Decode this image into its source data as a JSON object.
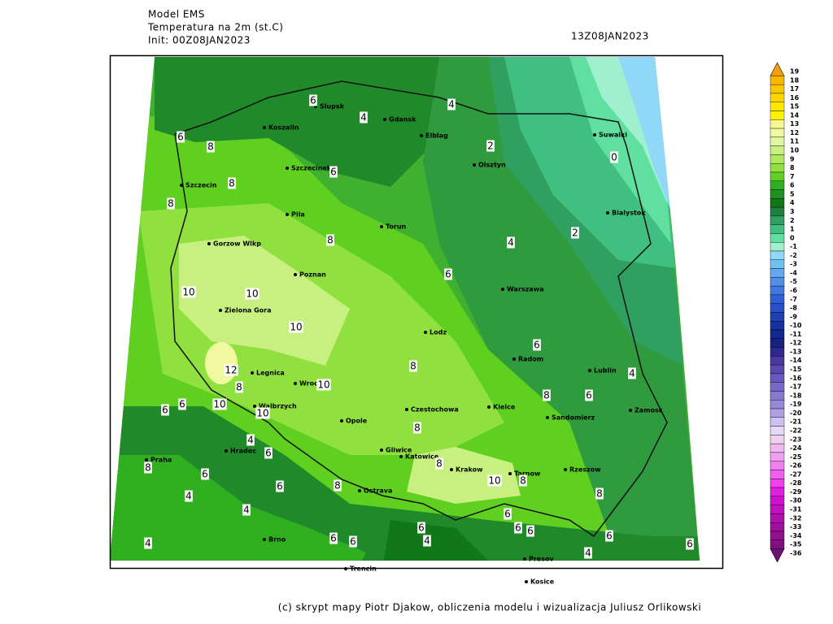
{
  "header": {
    "model": "Model EMS",
    "variable": "Temperatura na 2m (st.C)",
    "init": "Init: 00Z08JAN2023",
    "valid": "13Z08JAN2023"
  },
  "footer": "(c) skrypt mapy Piotr Djakow, obliczenia modelu i wizualizacja Juliusz Orlikowski",
  "cities": [
    "Slupsk",
    "Koszalin",
    "Gdansk",
    "Elblag",
    "Suwalki",
    "Olsztyn",
    "Szczecin",
    "Szczecinek",
    "Pila",
    "Torun",
    "Bialystok",
    "Gorzow Wlkp",
    "Poznan",
    "Warszawa",
    "Zielona Gora",
    "Lodz",
    "Radom",
    "Legnica",
    "Wroclaw",
    "Lublin",
    "Kielce",
    "Czestochowa",
    "Walbrzych",
    "Opole",
    "Zamosc",
    "Sandomierz",
    "Hradec",
    "Gliwice",
    "Katowice",
    "Krakow",
    "Praha",
    "Rzeszow",
    "Tarnow",
    "Ostrava",
    "Brno",
    "Presov",
    "Kosice",
    "Trencin"
  ],
  "contour_labels": [
    "6",
    "4",
    "4",
    "6",
    "8",
    "2",
    "0",
    "6",
    "8",
    "8",
    "2",
    "4",
    "8",
    "6",
    "10",
    "10",
    "10",
    "6",
    "12",
    "8",
    "8",
    "4",
    "10",
    "10",
    "6",
    "6",
    "10",
    "8",
    "6",
    "8",
    "4",
    "6",
    "8",
    "6",
    "6",
    "8",
    "8",
    "10",
    "8",
    "4",
    "4",
    "8",
    "6",
    "6",
    "6",
    "6",
    "6",
    "6",
    "4",
    "6",
    "6",
    "4",
    "4"
  ],
  "colorbar": {
    "labels": [
      "19",
      "18",
      "17",
      "16",
      "15",
      "14",
      "13",
      "12",
      "11",
      "10",
      "9",
      "8",
      "7",
      "6",
      "5",
      "4",
      "3",
      "2",
      "1",
      "0",
      "-1",
      "-2",
      "-3",
      "-4",
      "-5",
      "-6",
      "-7",
      "-8",
      "-9",
      "-10",
      "-11",
      "-12",
      "-13",
      "-14",
      "-15",
      "-16",
      "-17",
      "-18",
      "-19",
      "-20",
      "-21",
      "-22",
      "-23",
      "-24",
      "-25",
      "-26",
      "-27",
      "-28",
      "-29",
      "-30",
      "-31",
      "-32",
      "-33",
      "-34",
      "-35",
      "-36"
    ],
    "colors": [
      "#f5a000",
      "#f8b800",
      "#fac800",
      "#fcd800",
      "#fde800",
      "#fff200",
      "#f8f890",
      "#f0f8a0",
      "#e0f8a0",
      "#c8f080",
      "#b0e860",
      "#90e040",
      "#60d020",
      "#30b020",
      "#209020",
      "#107818",
      "#208040",
      "#30a060",
      "#40c080",
      "#60e0a0",
      "#a0f0d0",
      "#90d8f8",
      "#70c0f0",
      "#60a8f0",
      "#5090e8",
      "#4078e0",
      "#3060d8",
      "#2850c8",
      "#2040b0",
      "#1830a0",
      "#102890",
      "#182080",
      "#302890",
      "#4838a0",
      "#5848b0",
      "#6858c0",
      "#7868c8",
      "#8878d0",
      "#9888d8",
      "#b0a0e0",
      "#d0c0f0",
      "#e8d8f8",
      "#f0d0f0",
      "#f0b8f0",
      "#f0a0f0",
      "#f080f0",
      "#f060f0",
      "#f040f0",
      "#e020e0",
      "#d010d0",
      "#c010c0",
      "#b010b0",
      "#a010a0",
      "#901090",
      "#801080",
      "#701070"
    ]
  }
}
